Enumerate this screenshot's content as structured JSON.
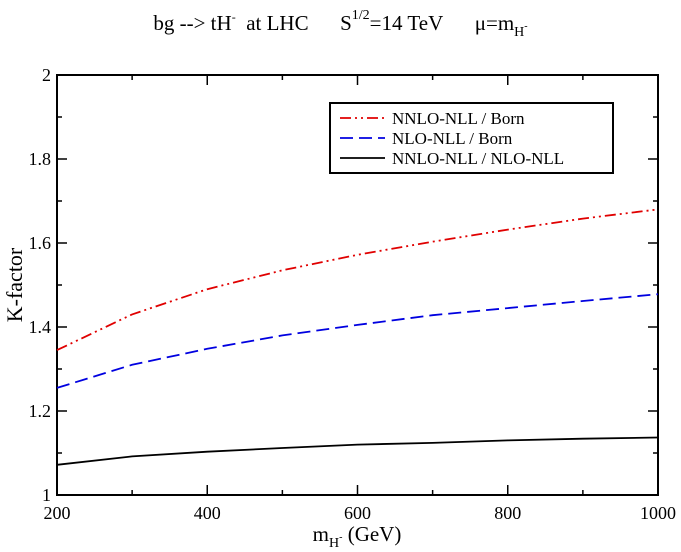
{
  "chart_data": {
    "type": "line",
    "title": {
      "process": "bg --> tH",
      "process_sup": "-",
      "collider": "at  LHC",
      "energy_base": "S",
      "energy_sup": "1/2",
      "energy_rest": "=14 TeV",
      "scale_base": "μ=m",
      "scale_sub": "H",
      "scale_subsup": "-"
    },
    "xlabel": {
      "base": "m",
      "sub": "H",
      "subsup": "-",
      "rest": " (GeV)"
    },
    "ylabel": "K-factor",
    "xlim": [
      200,
      1000
    ],
    "ylim": [
      1,
      2
    ],
    "x_major_ticks": [
      200,
      400,
      600,
      800,
      1000
    ],
    "x_minor_step": 100,
    "y_major_ticks": [
      1,
      1.2,
      1.4,
      1.6,
      1.8,
      2
    ],
    "y_tick_labels": [
      "1",
      "1.2",
      "1.4",
      "1.6",
      "1.8",
      "2"
    ],
    "y_minor_step": 0.1,
    "grid": false,
    "legend_position": "top-right",
    "series": [
      {
        "name": "NNLO-NLL / Born",
        "color": "#e00000",
        "dash": "dash-dot-dot",
        "x": [
          200,
          300,
          400,
          500,
          600,
          700,
          800,
          900,
          1000
        ],
        "values": [
          1.345,
          1.43,
          1.49,
          1.535,
          1.572,
          1.603,
          1.632,
          1.658,
          1.68
        ]
      },
      {
        "name": "NLO-NLL / Born",
        "color": "#0000e0",
        "dash": "dashed",
        "x": [
          200,
          300,
          400,
          500,
          600,
          700,
          800,
          900,
          1000
        ],
        "values": [
          1.255,
          1.31,
          1.348,
          1.38,
          1.405,
          1.428,
          1.445,
          1.462,
          1.478
        ]
      },
      {
        "name": "NNLO-NLL / NLO-NLL",
        "color": "#000000",
        "dash": "solid",
        "x": [
          200,
          300,
          400,
          500,
          600,
          700,
          800,
          900,
          1000
        ],
        "values": [
          1.072,
          1.092,
          1.103,
          1.112,
          1.12,
          1.124,
          1.13,
          1.134,
          1.137
        ]
      }
    ]
  }
}
